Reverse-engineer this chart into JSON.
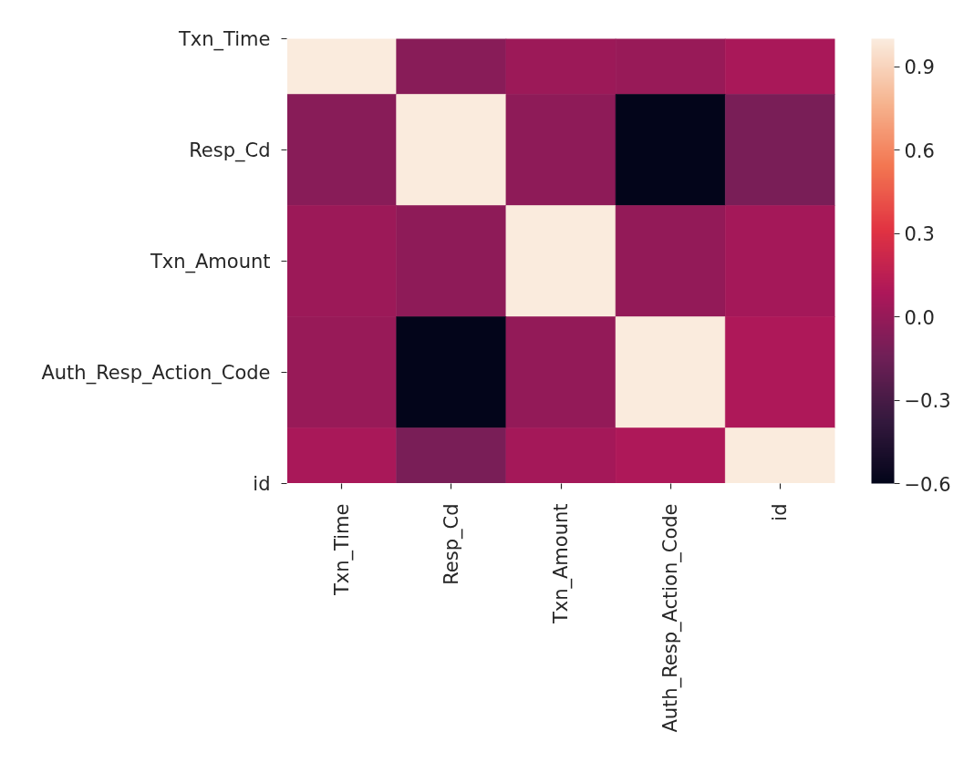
{
  "chart_data": {
    "type": "heatmap",
    "categories": [
      "Txn_Time",
      "Resp_Cd",
      "Txn_Amount",
      "Auth_Resp_Action_Code",
      "id"
    ],
    "y_categories": [
      "Txn_Time",
      "Resp_Cd",
      "Txn_Amount",
      "Auth_Resp_Action_Code",
      "id"
    ],
    "cells": [
      [
        1,
        -0.05,
        0.02,
        0.01,
        0.07
      ],
      [
        -0.05,
        1,
        -0.03,
        -0.6,
        -0.11
      ],
      [
        0.02,
        -0.03,
        1,
        -0.01,
        0.05
      ],
      [
        0.01,
        -0.6,
        -0.01,
        1,
        0.09
      ],
      [
        0.07,
        -0.11,
        0.05,
        0.09,
        1
      ]
    ],
    "clim": [
      -0.6,
      1.0
    ],
    "cticks": [
      {
        "value": -0.6,
        "label": "−0.6"
      },
      {
        "value": -0.3,
        "label": "−0.3"
      },
      {
        "value": 0,
        "label": "0.0"
      },
      0.3,
      0.6,
      0.9
    ]
  }
}
